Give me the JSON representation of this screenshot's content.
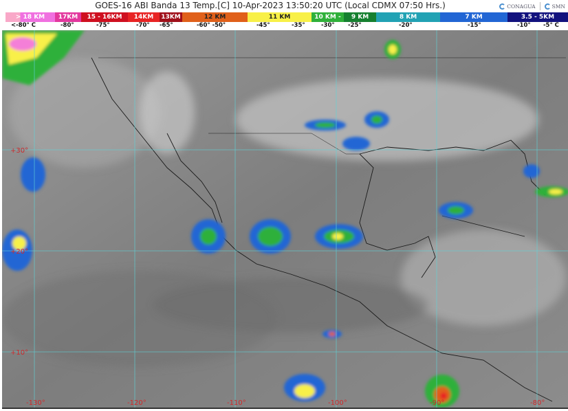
{
  "title": "GOES-16 ABI Banda 13 Temp.[C] 10-Apr-2023 13:50:20 UTC (Local CDMX  07:50 Hrs.)",
  "logos": [
    "CONAGUA",
    "SMN"
  ],
  "legend": [
    {
      "label": "> 18 KM",
      "color": "#f47fd8"
    },
    {
      "label": "17KM",
      "color": "#e3389e"
    },
    {
      "label": "15 - 16KM",
      "color": "#cf1020"
    },
    {
      "label": "14KM",
      "color": "#e82424"
    },
    {
      "label": "13KM",
      "color": "#a0101a"
    },
    {
      "label": "12 KM",
      "color": "#e0601a"
    },
    {
      "label": "11 KM",
      "color": "#f8f048"
    },
    {
      "label": "10 KM -",
      "color": "#2fb03a"
    },
    {
      "label": "9 KM",
      "color": "#168030"
    },
    {
      "label": "8 KM",
      "color": "#22a2b4"
    },
    {
      "label": "7 KM",
      "color": "#2266d4"
    },
    {
      "label": "3.5 - 5KM",
      "color": "#12127e"
    }
  ],
  "temperatures": [
    "<-80° C",
    "-80°",
    "-75°",
    "-70°",
    "-65°",
    "-60° -50°",
    "-45°",
    "-35°",
    "-30°",
    "-25°",
    "-20°",
    "-15°",
    "-10°",
    "-5° C"
  ],
  "latitudes": [
    "+30°",
    "+20°",
    "+10°"
  ],
  "longitudes": [
    "-130°",
    "-120°",
    "-110°",
    "-100°",
    "-90°",
    "-80°"
  ],
  "colors": {
    "grid": "#5fd3d8",
    "grid_label": "#d0282a",
    "background": "#8a8a8a"
  }
}
